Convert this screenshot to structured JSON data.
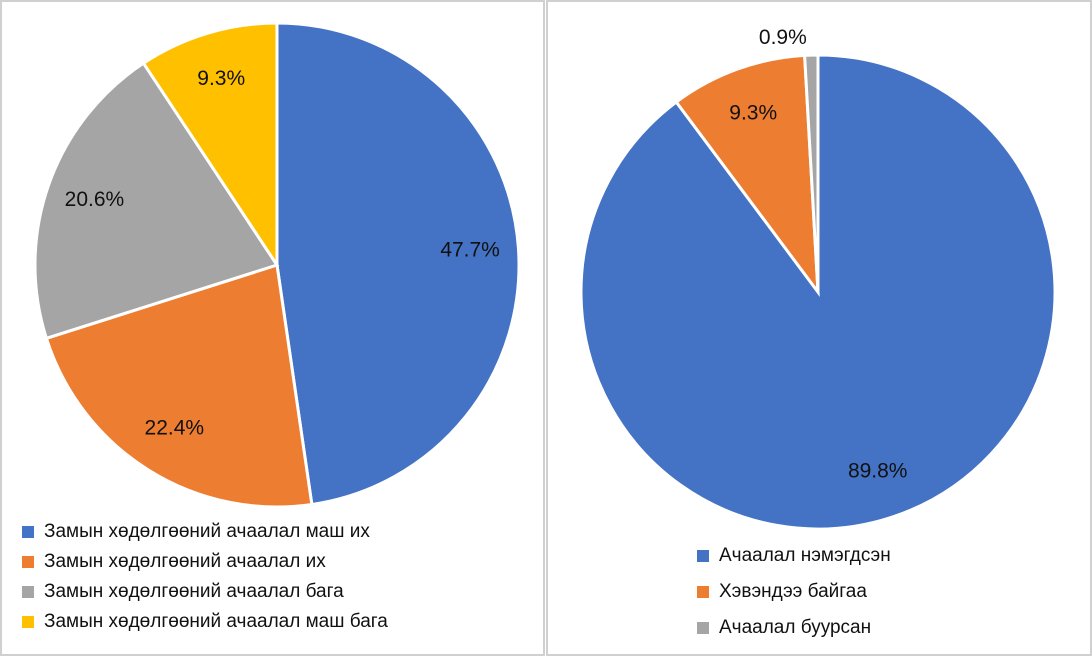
{
  "chart_data": [
    {
      "type": "pie",
      "categories": [
        "Замын хөдөлгөөний ачаалал маш их",
        "Замын хөдөлгөөний ачаалал их",
        "Замын хөдөлгөөний ачаалал бага",
        "Замын хөдөлгөөний ачаалал маш бага"
      ],
      "values": [
        47.7,
        22.4,
        20.6,
        9.3
      ],
      "value_labels": [
        "47.7%",
        "22.4%",
        "20.6%",
        "9.3%"
      ],
      "colors": [
        "#4472c4",
        "#ed7d31",
        "#a5a5a5",
        "#ffc000"
      ],
      "legend": "bottom"
    },
    {
      "type": "pie",
      "categories": [
        "Ачаалал нэмэгдсэн",
        "Хэвэндээ байгаа",
        "Ачаалал буурсан"
      ],
      "values": [
        89.8,
        9.3,
        0.9
      ],
      "value_labels": [
        "89.8%",
        "9.3%",
        "0.9%"
      ],
      "colors": [
        "#4472c4",
        "#ed7d31",
        "#a5a5a5"
      ],
      "legend": "bottom"
    }
  ]
}
